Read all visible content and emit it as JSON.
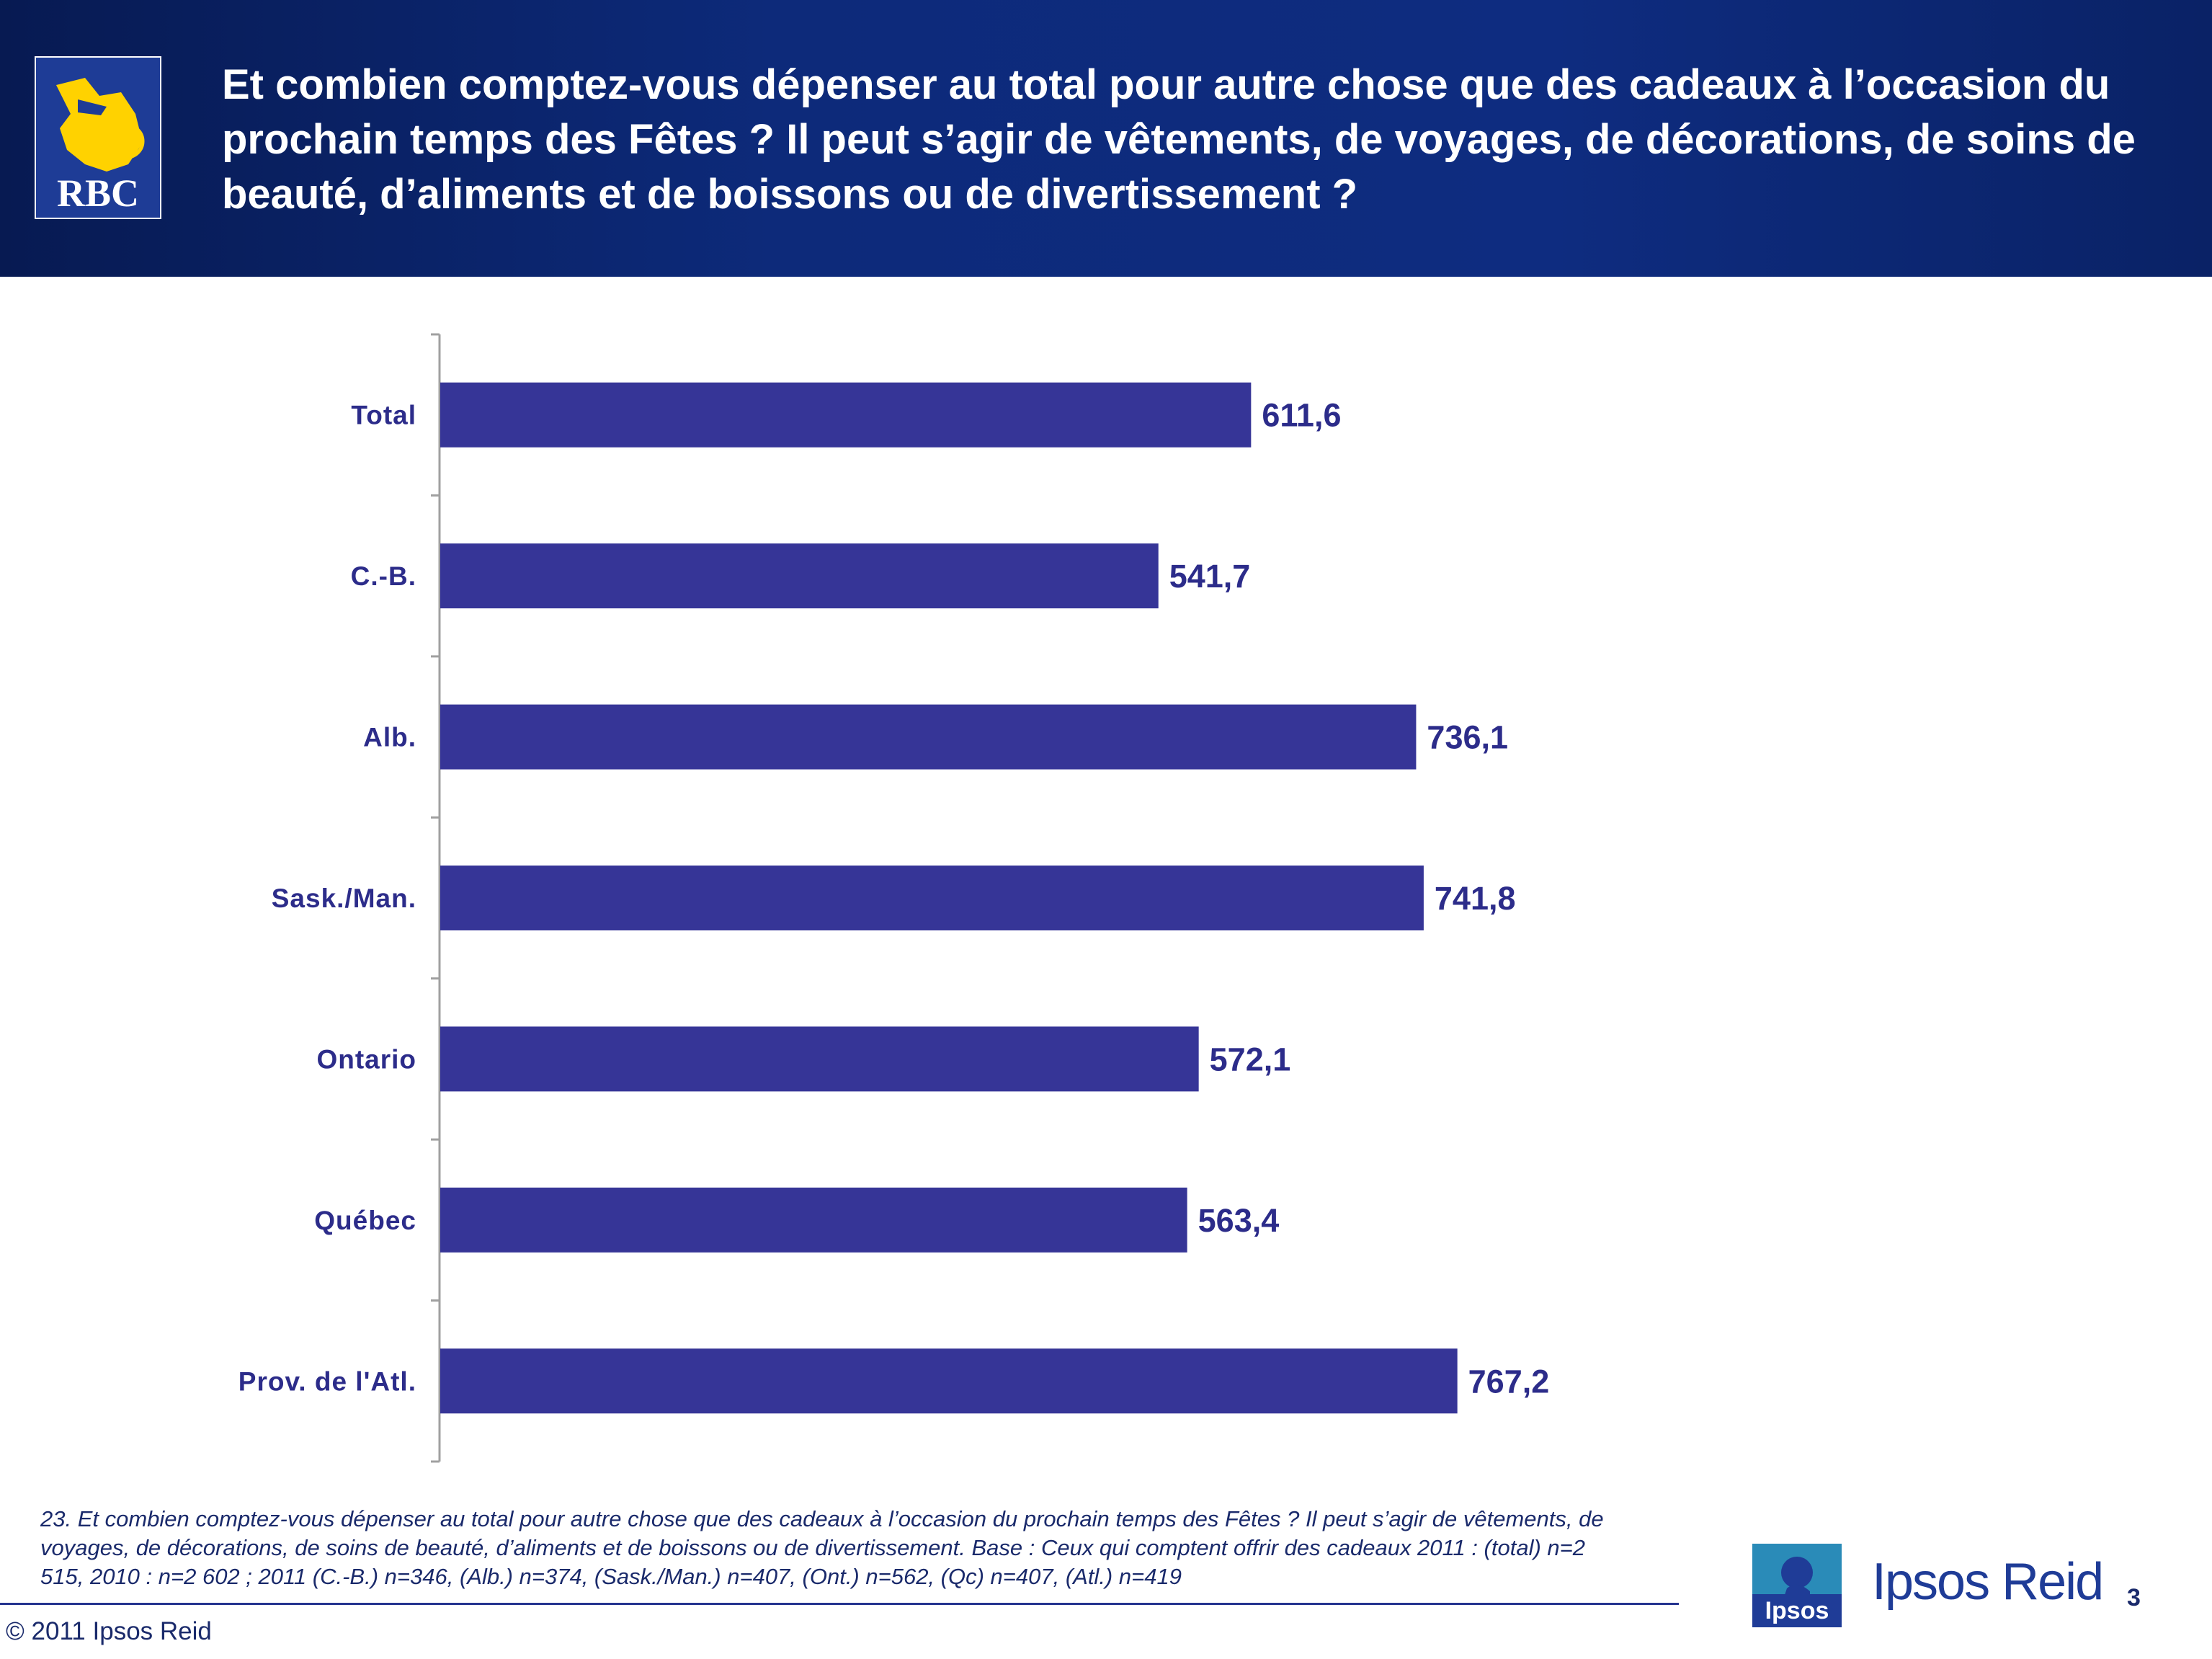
{
  "header": {
    "title": "Et combien comptez-vous dépenser au total pour autre chose que des cadeaux à l’occasion du prochain temps des Fêtes ? Il peut s’agir de vêtements, de voyages, de décorations, de soins de beauté, d’aliments et de boissons ou de divertissement ?",
    "logo_text": "RBC",
    "colors": {
      "header_bg": "#0d2a7a",
      "logo_bg": "#1e3c96",
      "logo_gold": "#ffd200"
    }
  },
  "chart_data": {
    "type": "bar",
    "orientation": "horizontal",
    "categories": [
      "Total",
      "C.-B.",
      "Alb.",
      "Sask./Man.",
      "Ontario",
      "Québec",
      "Prov. de l'Atl."
    ],
    "values": [
      611.6,
      541.7,
      736.1,
      741.8,
      572.1,
      563.4,
      767.2
    ],
    "value_labels": [
      "611,6",
      "541,7",
      "736,1",
      "741,8",
      "572,1",
      "563,4",
      "767,2"
    ],
    "xlim": [
      0,
      1250
    ],
    "bar_color": "#363597",
    "label_color": "#2c2c8a",
    "grid": false,
    "legend": "none"
  },
  "footnote": "23. Et combien comptez-vous dépenser au total pour autre chose que des cadeaux à l’occasion du prochain temps des Fêtes ? Il peut s’agir de vêtements, de voyages, de décorations, de soins de beauté, d’aliments et de boissons ou de divertissement. Base : Ceux qui comptent offrir des cadeaux 2011 : (total) n=2 515, 2010 : n=2 602 ; 2011 (C.-B.) n=346, (Alb.) n=374, (Sask./Man.) n=407, (Ont.) n=562, (Qc) n=407, (Atl.) n=419",
  "footer": {
    "copyright": "© 2011 Ipsos Reid",
    "brand": "Ipsos Reid",
    "brand_small": "Ipsos",
    "page_number": "3"
  }
}
